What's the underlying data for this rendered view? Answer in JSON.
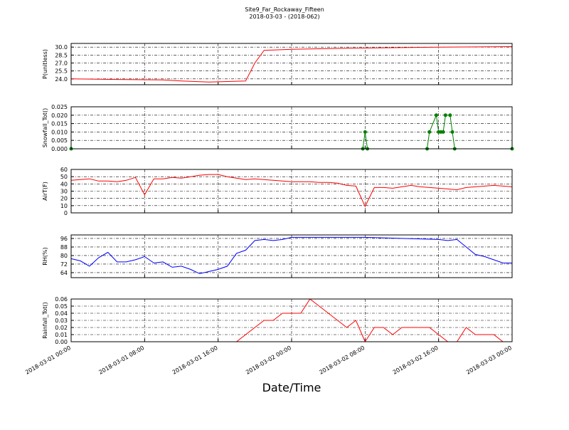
{
  "title": "Site9_Far_Rockaway_Fifteen",
  "subtitle": "2018-03-03 - (2018-062)",
  "xlabel": "Date/Time",
  "chart_data": [
    {
      "type": "line",
      "ylabel": "P(unitless)",
      "xlim": [
        "2018-03-01 00:00",
        "2018-03-03 00:00"
      ],
      "xticks": [
        "2018-03-01 00:00",
        "2018-03-01 08:00",
        "2018-03-01 16:00",
        "2018-03-02 00:00",
        "2018-03-02 08:00",
        "2018-03-02 16:00",
        "2018-03-03 00:00"
      ],
      "ylim": [
        22.9,
        30.7
      ],
      "yticks": [
        {
          "value": 24,
          "label": "24.0"
        },
        25.5,
        {
          "value": 27,
          "label": "27.0"
        },
        28.5,
        {
          "value": 30,
          "label": "30.0"
        }
      ],
      "grid": true,
      "x": [
        "2018-03-01 00:00",
        "2018-03-01 05:00",
        "2018-03-01 10:00",
        "2018-03-01 12:00",
        "2018-03-01 15:00",
        "2018-03-01 19:00",
        "2018-03-01 20:00",
        "2018-03-01 21:00",
        "2018-03-02 00:00",
        "2018-03-02 06:00",
        "2018-03-02 16:00",
        "2018-03-03 00:00"
      ],
      "series": [
        {
          "name": "P",
          "color": "#ff0000",
          "values": [
            24.0,
            23.9,
            23.8,
            23.6,
            23.4,
            23.6,
            27.0,
            29.4,
            29.6,
            29.8,
            30.0,
            30.1
          ]
        }
      ]
    },
    {
      "type": "line",
      "markers": true,
      "ylabel": "Snowfall_Tot()",
      "xlim": [
        "2018-03-01 00:00",
        "2018-03-03 00:00"
      ],
      "xticks": [
        "2018-03-01 00:00",
        "2018-03-01 08:00",
        "2018-03-01 16:00",
        "2018-03-02 00:00",
        "2018-03-02 08:00",
        "2018-03-02 16:00",
        "2018-03-03 00:00"
      ],
      "ylim": [
        0,
        0.025
      ],
      "yticks": [
        {
          "value": 0,
          "label": "0.000"
        },
        {
          "value": 0.005,
          "label": "0.005"
        },
        {
          "value": 0.01,
          "label": "0.010"
        },
        {
          "value": 0.015,
          "label": "0.015"
        },
        {
          "value": 0.02,
          "label": "0.020"
        },
        {
          "value": 0.025,
          "label": "0.025"
        }
      ],
      "grid": true,
      "x": [
        "2018-03-01 00:00",
        "2018-03-02 07:45",
        "2018-03-02 08:00",
        "2018-03-02 08:15",
        "2018-03-02 14:45",
        "2018-03-02 15:00",
        "2018-03-02 15:45",
        "2018-03-02 16:00",
        "2018-03-02 16:15",
        "2018-03-02 16:30",
        "2018-03-02 16:45",
        "2018-03-02 17:15",
        "2018-03-02 17:30",
        "2018-03-02 17:45",
        "2018-03-03 00:00"
      ],
      "series": [
        {
          "name": "Snowfall_Tot",
          "color": "#008000",
          "values": [
            0,
            0,
            0.01,
            0,
            0,
            0.01,
            0.02,
            0.01,
            0.01,
            0.01,
            0.02,
            0.02,
            0.01,
            0,
            0
          ]
        }
      ]
    },
    {
      "type": "line",
      "ylabel": "AirT(F)",
      "xlim": [
        "2018-03-01 00:00",
        "2018-03-03 00:00"
      ],
      "xticks": [
        "2018-03-01 00:00",
        "2018-03-01 08:00",
        "2018-03-01 16:00",
        "2018-03-02 00:00",
        "2018-03-02 08:00",
        "2018-03-02 16:00",
        "2018-03-03 00:00"
      ],
      "ylim": [
        0,
        60
      ],
      "yticks": [
        0,
        10,
        20,
        30,
        40,
        50,
        60
      ],
      "grid": true,
      "x": [
        "2018-03-01 00:00",
        "2018-03-01 01:00",
        "2018-03-01 02:00",
        "2018-03-01 03:00",
        "2018-03-01 04:00",
        "2018-03-01 05:00",
        "2018-03-01 06:00",
        "2018-03-01 07:00",
        "2018-03-01 08:00",
        "2018-03-01 09:00",
        "2018-03-01 10:00",
        "2018-03-01 11:00",
        "2018-03-01 12:00",
        "2018-03-01 13:00",
        "2018-03-01 14:00",
        "2018-03-01 15:00",
        "2018-03-01 16:00",
        "2018-03-01 17:00",
        "2018-03-01 18:00",
        "2018-03-01 19:00",
        "2018-03-01 20:00",
        "2018-03-01 21:00",
        "2018-03-01 22:00",
        "2018-03-01 23:00",
        "2018-03-02 00:00",
        "2018-03-02 01:00",
        "2018-03-02 02:00",
        "2018-03-02 03:00",
        "2018-03-02 04:00",
        "2018-03-02 05:00",
        "2018-03-02 06:00",
        "2018-03-02 07:00",
        "2018-03-02 08:00",
        "2018-03-02 09:00",
        "2018-03-02 10:00",
        "2018-03-02 11:00",
        "2018-03-02 12:00",
        "2018-03-02 13:00",
        "2018-03-02 14:00",
        "2018-03-02 15:00",
        "2018-03-02 16:00",
        "2018-03-02 17:00",
        "2018-03-02 18:00",
        "2018-03-02 19:00",
        "2018-03-02 20:00",
        "2018-03-02 21:00",
        "2018-03-02 22:00",
        "2018-03-02 23:00",
        "2018-03-03 00:00"
      ],
      "series": [
        {
          "name": "AirT",
          "color": "#ff0000",
          "values": [
            45,
            46,
            47,
            44,
            44,
            43,
            45,
            49,
            25,
            47,
            47,
            49,
            48,
            50,
            52,
            53,
            53,
            50,
            48,
            46,
            47,
            46,
            45,
            44,
            43,
            43,
            43,
            42,
            42,
            41,
            38,
            37,
            9,
            35,
            35,
            34,
            36,
            38,
            36,
            35,
            34,
            33,
            32,
            35,
            36,
            37,
            38,
            37,
            36
          ]
        }
      ]
    },
    {
      "type": "line",
      "ylabel": "RH(%)",
      "xlim": [
        "2018-03-01 00:00",
        "2018-03-03 00:00"
      ],
      "xticks": [
        "2018-03-01 00:00",
        "2018-03-01 08:00",
        "2018-03-01 16:00",
        "2018-03-02 00:00",
        "2018-03-02 08:00",
        "2018-03-02 16:00",
        "2018-03-03 00:00"
      ],
      "ylim": [
        59.3,
        99.3
      ],
      "yticks": [
        64,
        72,
        80,
        88,
        96
      ],
      "grid": true,
      "x": [
        "2018-03-01 00:00",
        "2018-03-01 01:00",
        "2018-03-01 02:00",
        "2018-03-01 03:00",
        "2018-03-01 04:00",
        "2018-03-01 05:00",
        "2018-03-01 06:00",
        "2018-03-01 07:00",
        "2018-03-01 08:00",
        "2018-03-01 09:00",
        "2018-03-01 10:00",
        "2018-03-01 11:00",
        "2018-03-01 12:00",
        "2018-03-01 13:00",
        "2018-03-01 14:00",
        "2018-03-01 15:00",
        "2018-03-01 16:00",
        "2018-03-01 17:00",
        "2018-03-01 18:00",
        "2018-03-01 19:00",
        "2018-03-01 20:00",
        "2018-03-01 21:00",
        "2018-03-01 22:00",
        "2018-03-01 23:00",
        "2018-03-02 00:00",
        "2018-03-02 04:00",
        "2018-03-02 08:00",
        "2018-03-02 12:00",
        "2018-03-02 16:00",
        "2018-03-02 17:00",
        "2018-03-02 18:00",
        "2018-03-02 19:00",
        "2018-03-02 20:00",
        "2018-03-02 21:00",
        "2018-03-02 22:00",
        "2018-03-02 23:00",
        "2018-03-03 00:00"
      ],
      "series": [
        {
          "name": "RH",
          "color": "#0000ff",
          "values": [
            77,
            75,
            70,
            78,
            83,
            74,
            74,
            76,
            79,
            73,
            74,
            69,
            70,
            67,
            63,
            65,
            67,
            70,
            82,
            85,
            94,
            95,
            94,
            95,
            97,
            97,
            97,
            96,
            95,
            94,
            95,
            88,
            81,
            79,
            76,
            73,
            73
          ]
        }
      ]
    },
    {
      "type": "line",
      "ylabel": "Rainfall_Tot()",
      "xlim": [
        "2018-03-01 00:00",
        "2018-03-03 00:00"
      ],
      "xticks": [
        {
          "value": "2018-03-01 00:00",
          "label": "2018-03-01 00:00"
        },
        {
          "value": "2018-03-01 08:00",
          "label": "2018-03-01 08:00"
        },
        {
          "value": "2018-03-01 16:00",
          "label": "2018-03-01 16:00"
        },
        {
          "value": "2018-03-02 00:00",
          "label": "2018-03-02 00:00"
        },
        {
          "value": "2018-03-02 08:00",
          "label": "2018-03-02 08:00"
        },
        {
          "value": "2018-03-02 16:00",
          "label": "2018-03-02 16:00"
        },
        {
          "value": "2018-03-03 00:00",
          "label": "2018-03-03 00:00"
        }
      ],
      "ylim": [
        0,
        0.06
      ],
      "yticks": [
        {
          "value": 0,
          "label": "0.00"
        },
        0.01,
        0.02,
        0.03,
        0.04,
        0.05,
        0.06
      ],
      "grid": true,
      "x": [
        "2018-03-01 00:00",
        "2018-03-01 18:00",
        "2018-03-01 19:00",
        "2018-03-01 20:00",
        "2018-03-01 21:00",
        "2018-03-01 22:00",
        "2018-03-01 23:00",
        "2018-03-02 00:00",
        "2018-03-02 01:00",
        "2018-03-02 02:00",
        "2018-03-02 03:00",
        "2018-03-02 04:00",
        "2018-03-02 05:00",
        "2018-03-02 06:00",
        "2018-03-02 07:00",
        "2018-03-02 08:00",
        "2018-03-02 09:00",
        "2018-03-02 10:00",
        "2018-03-02 11:00",
        "2018-03-02 12:00",
        "2018-03-02 13:00",
        "2018-03-02 14:00",
        "2018-03-02 15:00",
        "2018-03-02 16:00",
        "2018-03-02 17:00",
        "2018-03-02 18:00",
        "2018-03-02 19:00",
        "2018-03-02 20:00",
        "2018-03-02 21:00",
        "2018-03-02 22:00",
        "2018-03-02 23:00",
        "2018-03-03 00:00"
      ],
      "series": [
        {
          "name": "Rainfall_Tot",
          "color": "#ff0000",
          "values": [
            0,
            0,
            0.01,
            0.02,
            0.03,
            0.03,
            0.04,
            0.04,
            0.04,
            0.06,
            0.05,
            0.04,
            0.03,
            0.02,
            0.03,
            0,
            0.02,
            0.02,
            0.01,
            0.02,
            0.02,
            0.02,
            0.02,
            0.01,
            0,
            0,
            0.02,
            0.01,
            0.01,
            0.01,
            0,
            0
          ]
        }
      ]
    }
  ]
}
